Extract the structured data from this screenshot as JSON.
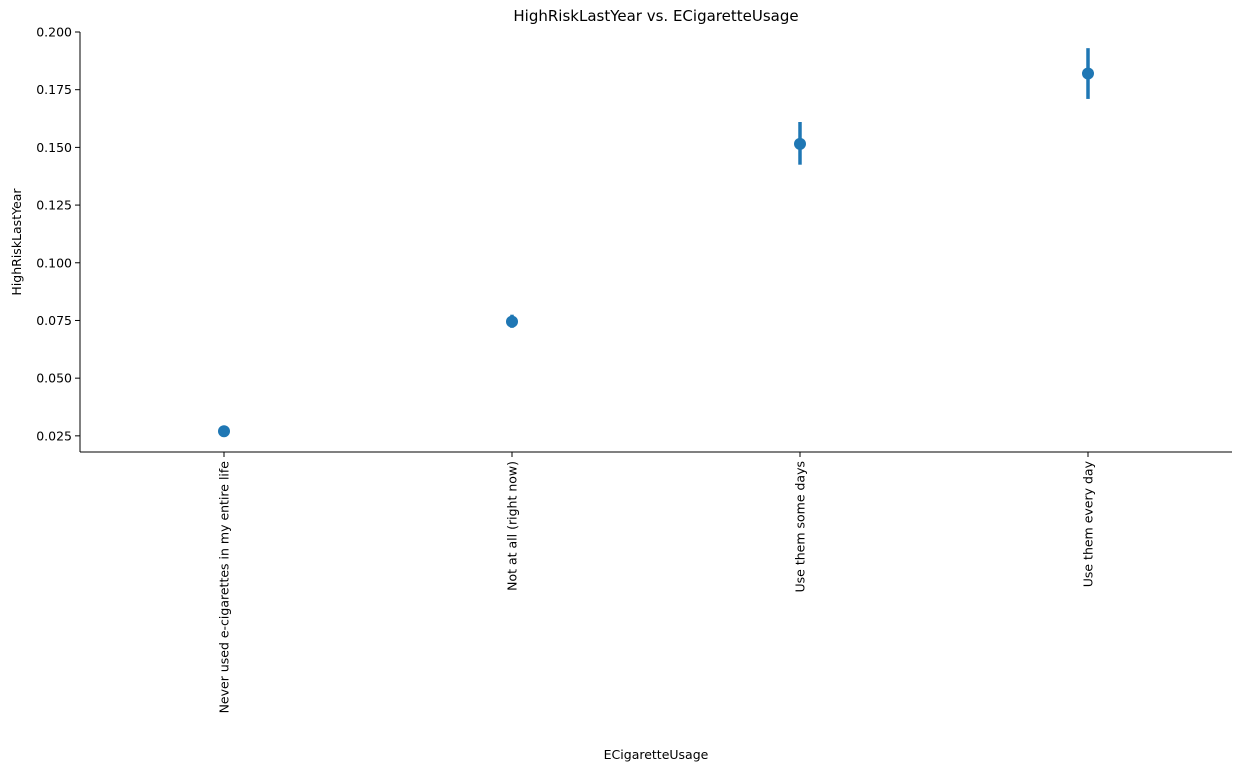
{
  "chart_data": {
    "type": "scatter",
    "subtype": "point-plot-with-error-bars",
    "title": "HighRiskLastYear vs. ECigaretteUsage",
    "xlabel": "ECigaretteUsage",
    "ylabel": "HighRiskLastYear",
    "categories": [
      "Never used e-cigarettes in my entire life",
      "Not at all (right now)",
      "Use them some days",
      "Use them every day"
    ],
    "values": [
      0.027,
      0.0745,
      0.1515,
      0.182
    ],
    "ci_low": [
      0.0258,
      0.0718,
      0.1425,
      0.171
    ],
    "ci_high": [
      0.0282,
      0.0775,
      0.161,
      0.193
    ],
    "ylim": [
      0.018,
      0.2
    ],
    "yticks": [
      0.025,
      0.05,
      0.075,
      0.1,
      0.125,
      0.15,
      0.175,
      0.2
    ],
    "ytick_labels": [
      "0.025",
      "0.050",
      "0.075",
      "0.100",
      "0.125",
      "0.150",
      "0.175",
      "0.200"
    ],
    "grid": false,
    "color": "#1f77b4"
  }
}
